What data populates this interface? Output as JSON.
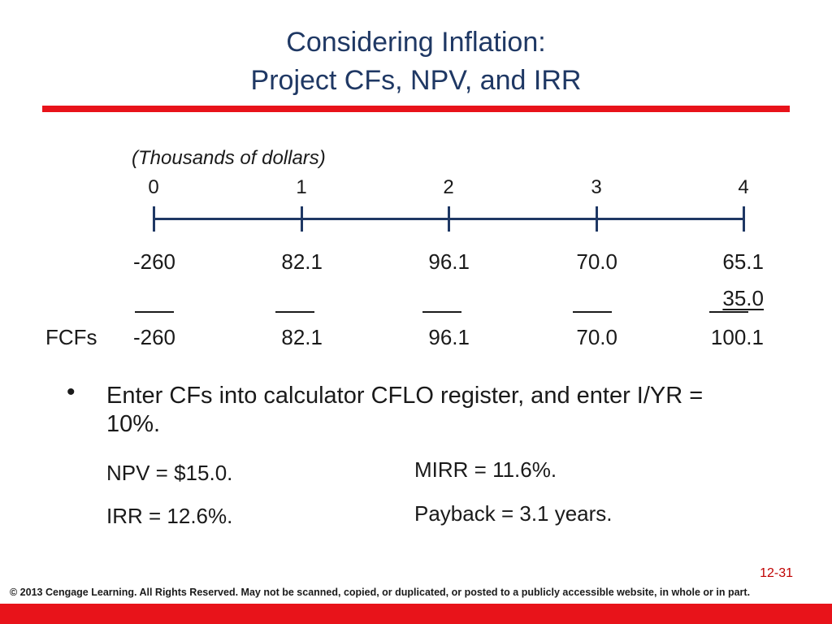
{
  "slide": {
    "title_line1": "Considering Inflation:",
    "title_line2": "Project CFs, NPV, and IRR",
    "units": "(Thousands of dollars)",
    "periods": [
      "0",
      "1",
      "2",
      "3",
      "4"
    ],
    "cash_flows_row1": [
      "-260",
      "82.1",
      "96.1",
      "70.0",
      "65.1"
    ],
    "terminal_cf": "35.0",
    "fcf_label": "FCFs",
    "fcfs": [
      "-260",
      "82.1",
      "96.1",
      "70.0",
      "100.1"
    ],
    "bullet": "Enter CFs into calculator CFLO register, and enter I/YR = 10%.",
    "results": {
      "npv": "NPV = $15.0.",
      "irr": "IRR = 12.6%.",
      "mirr": "MIRR = 11.6%.",
      "payback": "Payback = 3.1 years."
    },
    "slide_number": "12-31",
    "footer": "© 2013 Cengage Learning. All Rights Reserved. May not be scanned, copied, or duplicated, or posted to a publicly accessible website, in whole or in part.",
    "colors": {
      "title": "#1f3864",
      "accent": "#e8131a",
      "slide_number": "#c00000"
    }
  }
}
